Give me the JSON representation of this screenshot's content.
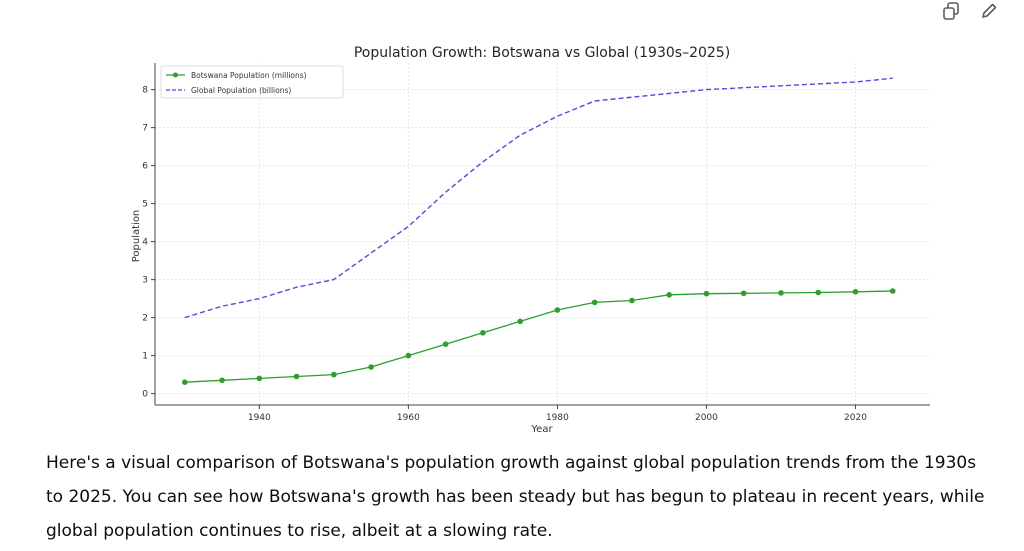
{
  "toolbar": {
    "copy_icon": "copy-icon",
    "edit_icon": "pencil-icon"
  },
  "caption": "Here's a visual comparison of Botswana's population growth against global population trends from the 1930s to 2025. You can see how Botswana's growth has been steady but has begun to plateau in recent years, while global population continues to rise, albeit at a slowing rate.",
  "chart_data": {
    "type": "line",
    "title": "Population Growth: Botswana vs Global (1930s–2025)",
    "xlabel": "Year",
    "ylabel": "Population",
    "xlim": [
      1926,
      2030
    ],
    "ylim": [
      -0.3,
      8.7
    ],
    "xticks": [
      1940,
      1960,
      1980,
      2000,
      2020
    ],
    "yticks": [
      0,
      1,
      2,
      3,
      4,
      5,
      6,
      7,
      8
    ],
    "grid": true,
    "legend_position": "top-left",
    "x": [
      1930,
      1935,
      1940,
      1945,
      1950,
      1955,
      1960,
      1965,
      1970,
      1975,
      1980,
      1985,
      1990,
      1995,
      2000,
      2005,
      2010,
      2015,
      2020,
      2025
    ],
    "series": [
      {
        "name": "Botswana Population (millions)",
        "color": "#2ca02c",
        "style": "solid",
        "marker": true,
        "values": [
          0.3,
          0.35,
          0.4,
          0.45,
          0.5,
          0.7,
          1.0,
          1.3,
          1.6,
          1.9,
          2.2,
          2.4,
          2.45,
          2.6,
          2.63,
          2.64,
          2.65,
          2.66,
          2.68,
          2.7
        ]
      },
      {
        "name": "Global Population (billions)",
        "color": "#4b4bf0",
        "style": "dashed",
        "marker": false,
        "values": [
          2.0,
          2.3,
          2.5,
          2.8,
          3.0,
          3.7,
          4.4,
          5.3,
          6.1,
          6.8,
          7.3,
          7.7,
          7.8,
          7.9,
          8.0,
          8.05,
          8.1,
          8.15,
          8.2,
          8.3
        ]
      }
    ]
  }
}
